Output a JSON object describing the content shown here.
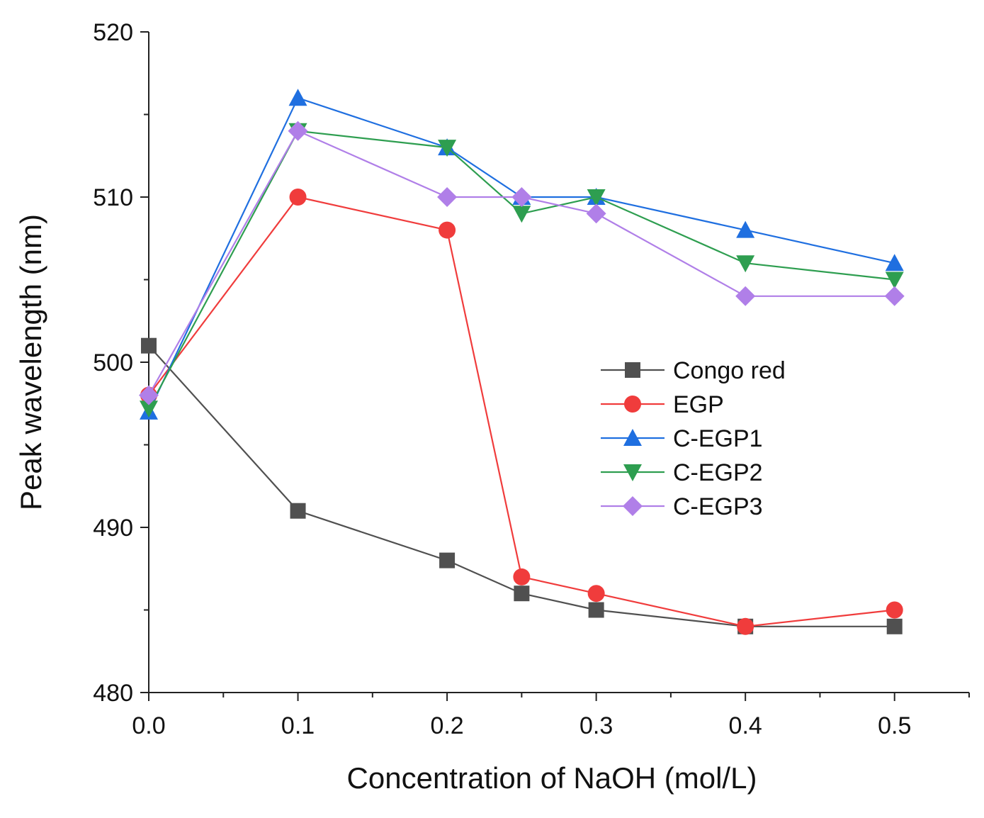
{
  "chart_data": {
    "type": "line",
    "title": "",
    "xlabel": "Concentration of NaOH (mol/L)",
    "ylabel": "Peak wavelength (nm)",
    "xlim": [
      0.0,
      0.55
    ],
    "ylim": [
      480,
      520
    ],
    "x_ticks": [
      0.0,
      0.1,
      0.2,
      0.3,
      0.4,
      0.5
    ],
    "x_tick_labels": [
      "0.0",
      "0.1",
      "0.2",
      "0.3",
      "0.4",
      "0.5"
    ],
    "x_minor_ticks": [
      0.05,
      0.15,
      0.25,
      0.35,
      0.45,
      0.55
    ],
    "y_ticks": [
      480,
      490,
      500,
      510,
      520
    ],
    "y_tick_labels": [
      "480",
      "490",
      "500",
      "510",
      "520"
    ],
    "y_minor_ticks": [
      485,
      495,
      505,
      515
    ],
    "grid": false,
    "legend_position": "center-right",
    "x": [
      0.0,
      0.1,
      0.2,
      0.25,
      0.3,
      0.4,
      0.5
    ],
    "series": [
      {
        "name": "Congo red",
        "color": "#505050",
        "marker": "square",
        "values": [
          501,
          491,
          488,
          486,
          485,
          484,
          484
        ]
      },
      {
        "name": "EGP",
        "color": "#f03c3c",
        "marker": "circle",
        "values": [
          498,
          510,
          508,
          487,
          486,
          484,
          485
        ]
      },
      {
        "name": "C-EGP1",
        "color": "#1f6fe0",
        "marker": "triangle-up",
        "values": [
          497,
          516,
          513,
          510,
          510,
          508,
          506
        ]
      },
      {
        "name": "C-EGP2",
        "color": "#2e9e50",
        "marker": "triangle-down",
        "values": [
          497.2,
          514,
          513,
          509,
          510,
          506,
          505
        ]
      },
      {
        "name": "C-EGP3",
        "color": "#b07fe8",
        "marker": "diamond",
        "values": [
          498,
          514,
          510,
          510,
          509,
          504,
          504
        ]
      }
    ]
  }
}
